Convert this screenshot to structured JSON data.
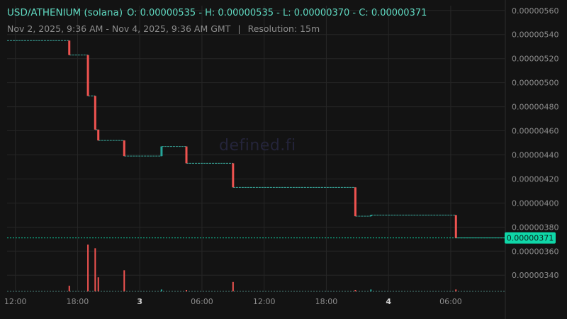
{
  "header": {
    "pair": "USD/ATHENIUM (solana)",
    "ohlc": "O: 0.00000535 - H: 0.00000535 - L: 0.00000370 - C: 0.00000371",
    "range": "Nov 2, 2025, 9:36 AM - Nov 4, 2025, 9:36 AM GMT",
    "separator": "|",
    "resolution": "Resolution: 15m"
  },
  "watermark": "defined.fi",
  "colors": {
    "background": "#131313",
    "grid": "#262626",
    "up": "#26a69a",
    "down": "#ef5350",
    "accent": "#0fd7a8",
    "text": "#8c8c8c"
  },
  "chart_data": {
    "type": "candlestick",
    "x_ticks": [
      {
        "t": 10.4,
        "label": "12:00",
        "bold": false
      },
      {
        "t": 16.4,
        "label": "18:00",
        "bold": false
      },
      {
        "t": 22.4,
        "label": "3",
        "bold": true
      },
      {
        "t": 28.4,
        "label": "06:00",
        "bold": false
      },
      {
        "t": 34.4,
        "label": "12:00",
        "bold": false
      },
      {
        "t": 40.4,
        "label": "18:00",
        "bold": false
      },
      {
        "t": 46.4,
        "label": "4",
        "bold": true
      },
      {
        "t": 52.4,
        "label": "06:00",
        "bold": false
      }
    ],
    "y_ticks": [
      "0.00000560",
      "0.00000540",
      "0.00000520",
      "0.00000500",
      "0.00000480",
      "0.00000460",
      "0.00000440",
      "0.00000420",
      "0.00000400",
      "0.00000380",
      "0.00000360",
      "0.00000340"
    ],
    "ylim": [
      3.26e-06,
      5.64e-06
    ],
    "xlim": [
      9.6,
      57.6
    ],
    "last_price": 3.71e-06,
    "last_price_label": "0.00000371",
    "price_segments": [
      {
        "t0": 9.6,
        "t1": 15.6,
        "p": 5.35e-06
      },
      {
        "t0": 15.6,
        "t1": 17.4,
        "p": 5.23e-06
      },
      {
        "t0": 17.4,
        "t1": 18.1,
        "p": 4.89e-06
      },
      {
        "t0": 18.1,
        "t1": 18.4,
        "p": 4.61e-06
      },
      {
        "t0": 18.4,
        "t1": 20.9,
        "p": 4.52e-06
      },
      {
        "t0": 20.9,
        "t1": 24.5,
        "p": 4.39e-06
      },
      {
        "t0": 24.5,
        "t1": 26.9,
        "p": 4.47e-06
      },
      {
        "t0": 26.9,
        "t1": 31.4,
        "p": 4.33e-06
      },
      {
        "t0": 31.4,
        "t1": 43.2,
        "p": 4.13e-06
      },
      {
        "t0": 43.2,
        "t1": 44.7,
        "p": 3.89e-06
      },
      {
        "t0": 44.7,
        "t1": 52.9,
        "p": 3.9e-06
      },
      {
        "t0": 52.9,
        "t1": 57.6,
        "p": 3.71e-06
      }
    ],
    "candles": [
      {
        "t": 15.6,
        "o": 5.35e-06,
        "c": 5.23e-06
      },
      {
        "t": 17.4,
        "o": 5.23e-06,
        "c": 4.89e-06
      },
      {
        "t": 18.1,
        "o": 4.89e-06,
        "c": 4.61e-06
      },
      {
        "t": 18.4,
        "o": 4.61e-06,
        "c": 4.52e-06
      },
      {
        "t": 20.9,
        "o": 4.52e-06,
        "c": 4.39e-06
      },
      {
        "t": 24.5,
        "o": 4.39e-06,
        "c": 4.47e-06
      },
      {
        "t": 26.9,
        "o": 4.47e-06,
        "c": 4.33e-06
      },
      {
        "t": 31.4,
        "o": 4.33e-06,
        "c": 4.13e-06
      },
      {
        "t": 43.2,
        "o": 4.13e-06,
        "c": 3.89e-06
      },
      {
        "t": 44.7,
        "o": 3.89e-06,
        "c": 3.9e-06
      },
      {
        "t": 52.9,
        "o": 3.9e-06,
        "c": 3.71e-06
      }
    ],
    "volume_scale_max": 100,
    "volume": [
      {
        "t": 15.6,
        "v": 12,
        "up": false
      },
      {
        "t": 17.4,
        "v": 100,
        "up": false
      },
      {
        "t": 18.1,
        "v": 92,
        "up": false
      },
      {
        "t": 18.4,
        "v": 30,
        "up": false
      },
      {
        "t": 20.9,
        "v": 45,
        "up": false
      },
      {
        "t": 24.5,
        "v": 4,
        "up": true
      },
      {
        "t": 26.9,
        "v": 3,
        "up": false
      },
      {
        "t": 31.4,
        "v": 20,
        "up": false
      },
      {
        "t": 43.2,
        "v": 3,
        "up": false
      },
      {
        "t": 44.7,
        "v": 4,
        "up": true
      },
      {
        "t": 52.9,
        "v": 4,
        "up": false
      }
    ]
  }
}
